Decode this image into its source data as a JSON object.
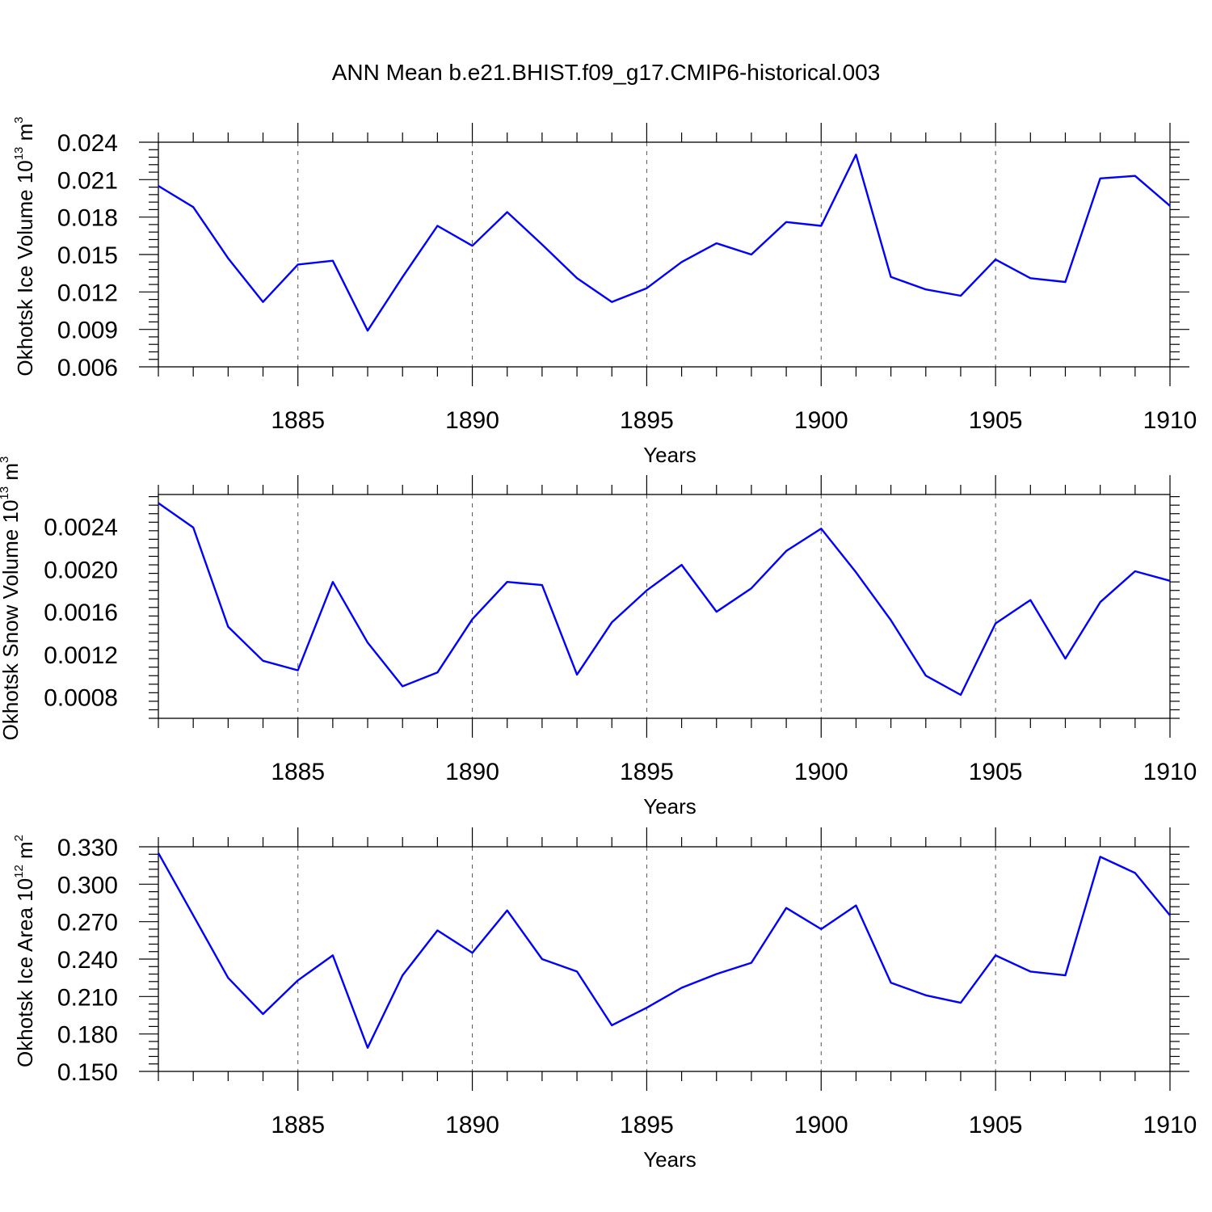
{
  "title": "ANN Mean b.e21.BHIST.f09_g17.CMIP6-historical.003",
  "colors": {
    "series": "#0000ff",
    "axis": "#000000",
    "grid": "#555555"
  },
  "chart_data": [
    {
      "type": "line",
      "ylabel": "Okhotsk Ice Volume",
      "yunit": {
        "base": "10",
        "exp": "13",
        "unit": "m",
        "unit_exp": "3"
      },
      "xlabel": "Years",
      "xlim": [
        1881,
        1910
      ],
      "ylim": [
        0.006,
        0.024
      ],
      "yticks": [
        "0.006",
        "0.009",
        "0.012",
        "0.015",
        "0.018",
        "0.021",
        "0.024"
      ],
      "xticks": [
        1885,
        1890,
        1895,
        1900,
        1905,
        1910
      ],
      "grid": "vertical dashed at major x ticks",
      "x": [
        1881,
        1882,
        1883,
        1884,
        1885,
        1886,
        1887,
        1888,
        1889,
        1890,
        1891,
        1892,
        1893,
        1894,
        1895,
        1896,
        1897,
        1898,
        1899,
        1900,
        1901,
        1902,
        1903,
        1904,
        1905,
        1906,
        1907,
        1908,
        1909,
        1910
      ],
      "values": [
        0.0205,
        0.0188,
        0.0147,
        0.0112,
        0.0142,
        0.0145,
        0.0089,
        0.0132,
        0.0173,
        0.0157,
        0.0184,
        0.0158,
        0.0131,
        0.0112,
        0.0123,
        0.0144,
        0.0159,
        0.015,
        0.0176,
        0.0173,
        0.023,
        0.0132,
        0.0122,
        0.0117,
        0.0146,
        0.0131,
        0.0128,
        0.0211,
        0.0213,
        0.0189
      ]
    },
    {
      "type": "line",
      "ylabel": "Okhotsk Snow Volume",
      "yunit": {
        "base": "10",
        "exp": "13",
        "unit": "m",
        "unit_exp": "3"
      },
      "xlabel": "Years",
      "xlim": [
        1881,
        1910
      ],
      "ylim": [
        0.0006,
        0.0027
      ],
      "yticks": [
        "0.0008",
        "0.0012",
        "0.0016",
        "0.0020",
        "0.0024"
      ],
      "xticks": [
        1885,
        1890,
        1895,
        1900,
        1905,
        1910
      ],
      "grid": "vertical dashed at major x ticks",
      "x": [
        1881,
        1882,
        1883,
        1884,
        1885,
        1886,
        1887,
        1888,
        1889,
        1890,
        1891,
        1892,
        1893,
        1894,
        1895,
        1896,
        1897,
        1898,
        1899,
        1900,
        1901,
        1902,
        1903,
        1904,
        1905,
        1906,
        1907,
        1908,
        1909,
        1910
      ],
      "values": [
        0.00262,
        0.00239,
        0.00146,
        0.00114,
        0.00105,
        0.00188,
        0.00131,
        0.0009,
        0.00103,
        0.00153,
        0.00188,
        0.00185,
        0.00101,
        0.0015,
        0.0018,
        0.00204,
        0.0016,
        0.00182,
        0.00217,
        0.00238,
        0.00197,
        0.00152,
        0.001,
        0.00082,
        0.00149,
        0.00171,
        0.00116,
        0.00169,
        0.00198,
        0.00189
      ]
    },
    {
      "type": "line",
      "ylabel": "Okhotsk Ice Area",
      "yunit": {
        "base": "10",
        "exp": "12",
        "unit": "m",
        "unit_exp": "2"
      },
      "xlabel": "Years",
      "xlim": [
        1881,
        1910
      ],
      "ylim": [
        0.15,
        0.33
      ],
      "yticks": [
        "0.150",
        "0.180",
        "0.210",
        "0.240",
        "0.270",
        "0.300",
        "0.330"
      ],
      "xticks": [
        1885,
        1890,
        1895,
        1900,
        1905,
        1910
      ],
      "grid": "vertical dashed at major x ticks",
      "x": [
        1881,
        1882,
        1883,
        1884,
        1885,
        1886,
        1887,
        1888,
        1889,
        1890,
        1891,
        1892,
        1893,
        1894,
        1895,
        1896,
        1897,
        1898,
        1899,
        1900,
        1901,
        1902,
        1903,
        1904,
        1905,
        1906,
        1907,
        1908,
        1909,
        1910
      ],
      "values": [
        0.325,
        0.275,
        0.225,
        0.196,
        0.223,
        0.243,
        0.169,
        0.227,
        0.263,
        0.245,
        0.279,
        0.24,
        0.23,
        0.187,
        0.201,
        0.217,
        0.228,
        0.237,
        0.281,
        0.264,
        0.283,
        0.221,
        0.211,
        0.205,
        0.243,
        0.23,
        0.227,
        0.322,
        0.309,
        0.275
      ]
    }
  ]
}
